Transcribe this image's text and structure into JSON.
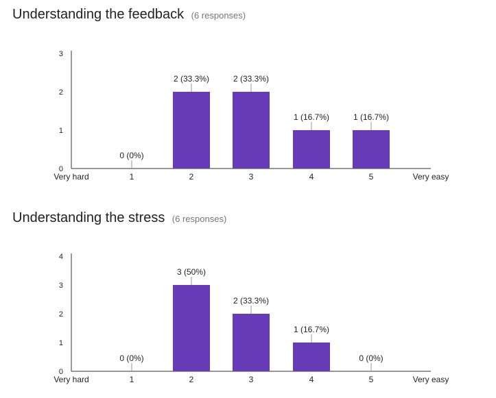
{
  "sections": [
    {
      "title": "Understanding the feedback",
      "count": "(6 responses)"
    },
    {
      "title": "Understanding the stress",
      "count": "(6 responses)"
    }
  ],
  "colors": {
    "bar": "#673ab7",
    "axis": "#333333",
    "label_tick": "#999999"
  },
  "chart_data": [
    {
      "type": "bar",
      "title": "Understanding the feedback",
      "categories": [
        "1",
        "2",
        "3",
        "4",
        "5"
      ],
      "values": [
        0,
        2,
        2,
        1,
        1
      ],
      "data_labels": [
        "0 (0%)",
        "2 (33.3%)",
        "2 (33.3%)",
        "1 (16.7%)",
        "1 (16.7%)"
      ],
      "x_end_labels": [
        "Very hard",
        "Very easy"
      ],
      "yticks": [
        "0",
        "1",
        "2",
        "3"
      ],
      "ylim": [
        0,
        3
      ],
      "grid": false
    },
    {
      "type": "bar",
      "title": "Understanding the stress",
      "categories": [
        "1",
        "2",
        "3",
        "4",
        "5"
      ],
      "values": [
        0,
        3,
        2,
        1,
        0
      ],
      "data_labels": [
        "0 (0%)",
        "3 (50%)",
        "2 (33.3%)",
        "1 (16.7%)",
        "0 (0%)"
      ],
      "x_end_labels": [
        "Very hard",
        "Very easy"
      ],
      "yticks": [
        "0",
        "1",
        "2",
        "3",
        "4"
      ],
      "ylim": [
        0,
        4
      ],
      "grid": false
    }
  ]
}
